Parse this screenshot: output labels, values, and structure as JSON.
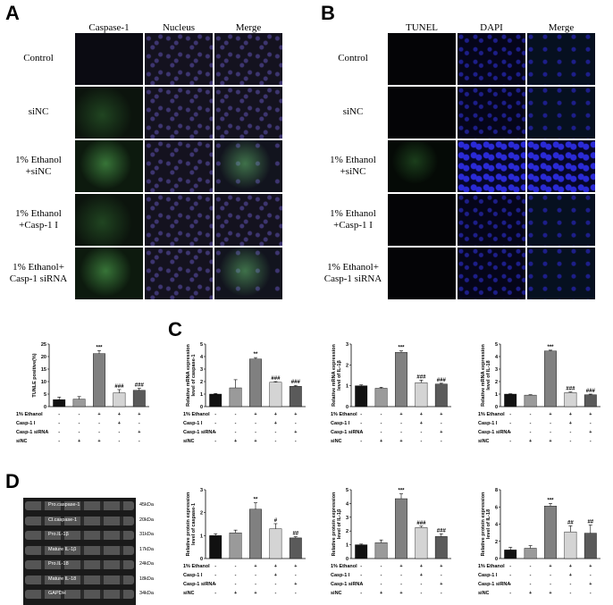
{
  "panels": {
    "A": "A",
    "B": "B",
    "C": "C",
    "D": "D"
  },
  "A": {
    "col_heads": [
      "Caspase-1",
      "Nucleus",
      "Merge"
    ],
    "rows": [
      "Control",
      "siNC",
      "1% Ethanol\n+siNC",
      "1% Ethanol\n+Casp-1 I",
      "1% Ethanol+\nCasp-1 siRNA"
    ]
  },
  "B": {
    "col_heads": [
      "TUNEL",
      "DAPI",
      "Merge"
    ],
    "rows": [
      "Control",
      "siNC",
      "1% Ethanol\n+siNC",
      "1% Ethanol\n+Casp-1 I",
      "1% Ethanol+\nCasp-1 siRNA"
    ]
  },
  "conditions": {
    "labels": [
      "1% Ethanol",
      "Casp-1 I",
      "Casp-1 siRNA",
      "siNC"
    ],
    "signs": [
      [
        "-",
        "-",
        "+",
        "+",
        "+"
      ],
      [
        "-",
        "-",
        "-",
        "+",
        "-"
      ],
      [
        "-",
        "-",
        "-",
        "-",
        "+"
      ],
      [
        "-",
        "+",
        "+",
        "-",
        "-"
      ]
    ]
  },
  "colors": {
    "c1": "#111111",
    "c2": "#9a9a9a",
    "c3": "#808080",
    "c4": "#d4d4d4",
    "c5": "#5a5a5a"
  },
  "chart_data": [
    {
      "id": "tunel",
      "type": "bar",
      "ylabel": "TUNLE positive(%)",
      "ylim": [
        0,
        25
      ],
      "ticks": [
        "0",
        "5",
        "10",
        "15",
        "20",
        "25"
      ],
      "values": [
        2.8,
        3.0,
        21.2,
        5.5,
        6.5
      ],
      "errors": [
        1.0,
        1.0,
        1.2,
        1.3,
        0.8
      ],
      "sig": [
        "",
        "",
        "***",
        "###",
        "###"
      ]
    },
    {
      "id": "mrna-casp1",
      "type": "bar",
      "ylabel": "Relative mRNA expression\nlevel of caspase-1",
      "ylim": [
        0,
        5
      ],
      "ticks": [
        "0",
        "1",
        "2",
        "3",
        "4",
        "5"
      ],
      "values": [
        1.0,
        1.5,
        3.8,
        1.95,
        1.62
      ],
      "errors": [
        0.05,
        0.65,
        0.12,
        0.05,
        0.08
      ],
      "sig": [
        "",
        "",
        "**",
        "###",
        "###"
      ]
    },
    {
      "id": "mrna-il1b",
      "type": "bar",
      "ylabel": "Relative mRNA expression\nlevel of IL-1β",
      "ylim": [
        0,
        3
      ],
      "ticks": [
        "0",
        "1",
        "2",
        "3"
      ],
      "values": [
        1.0,
        0.88,
        2.6,
        1.15,
        1.08
      ],
      "errors": [
        0.04,
        0.05,
        0.07,
        0.12,
        0.04
      ],
      "sig": [
        "",
        "",
        "***",
        "###",
        "###"
      ]
    },
    {
      "id": "mrna-il18",
      "type": "bar",
      "ylabel": "Relative mRNA expression\nlevel of IL-18",
      "ylim": [
        0,
        5
      ],
      "ticks": [
        "0",
        "1",
        "2",
        "3",
        "4",
        "5"
      ],
      "values": [
        1.0,
        0.92,
        4.45,
        1.12,
        0.95
      ],
      "errors": [
        0.03,
        0.03,
        0.06,
        0.05,
        0.05
      ],
      "sig": [
        "",
        "",
        "***",
        "###",
        "###"
      ]
    },
    {
      "id": "prot-casp1",
      "type": "bar",
      "ylabel": "Relative protein expression\nlevel of caspase-1",
      "ylim": [
        0,
        3
      ],
      "ticks": [
        "0",
        "1",
        "2",
        "3"
      ],
      "values": [
        1.0,
        1.12,
        2.15,
        1.3,
        0.9
      ],
      "errors": [
        0.08,
        0.12,
        0.28,
        0.22,
        0.05
      ],
      "sig": [
        "",
        "",
        "**",
        "#",
        "##"
      ]
    },
    {
      "id": "prot-il1b",
      "type": "bar",
      "ylabel": "Relative protein expression\nlevel of IL-1β",
      "ylim": [
        0,
        5
      ],
      "ticks": [
        "0",
        "1",
        "2",
        "3",
        "4",
        "5"
      ],
      "values": [
        1.0,
        1.15,
        4.35,
        2.25,
        1.6
      ],
      "errors": [
        0.05,
        0.2,
        0.35,
        0.1,
        0.2
      ],
      "sig": [
        "",
        "",
        "***",
        "###",
        "###"
      ]
    },
    {
      "id": "prot-il18",
      "type": "bar",
      "ylabel": "Relative protein expression\nlevel of IL-18",
      "ylim": [
        0,
        8
      ],
      "ticks": [
        "0",
        "2",
        "4",
        "6",
        "8"
      ],
      "values": [
        1.0,
        1.2,
        6.1,
        3.1,
        2.95
      ],
      "errors": [
        0.3,
        0.3,
        0.3,
        0.7,
        0.95
      ],
      "sig": [
        "",
        "",
        "***",
        "##",
        "##"
      ]
    }
  ],
  "blot": {
    "bands": [
      "Pro.caspase-1",
      "Cl.caspase-1",
      "Pro.IL-1β",
      "Mature IL-1β",
      "Pro.IL-18",
      "Mature IL-18",
      "GAPDH"
    ],
    "kda": [
      "45kDa",
      "20kDa",
      "31kDa",
      "17kDa",
      "24kDa",
      "18kDa",
      "34kDa"
    ]
  }
}
